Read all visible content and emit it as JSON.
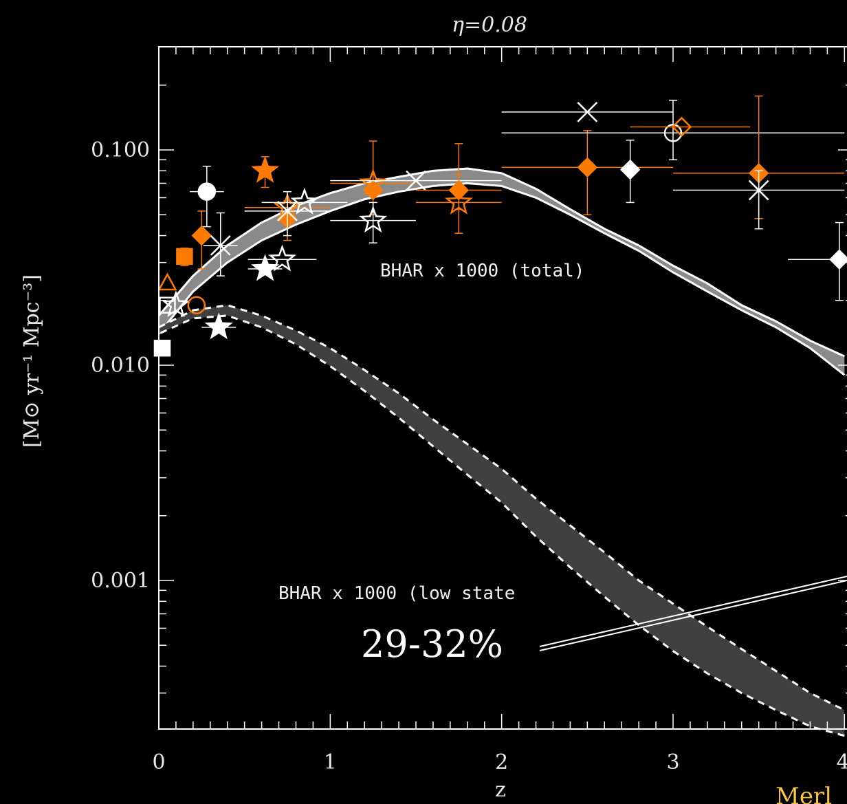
{
  "chart_data": {
    "type": "scatter",
    "title": "η=0.08",
    "xlabel": "z",
    "ylabel": "[M⊙ yr⁻¹ Mpc⁻³]",
    "xlim": [
      0,
      4
    ],
    "ylim": [
      0.0002,
      0.3
    ],
    "yscale": "log",
    "x_ticks": [
      "0",
      "1",
      "2",
      "3",
      "4"
    ],
    "y_ticks": [
      "0.100",
      "0.010",
      "0.001"
    ],
    "y_tick_values": [
      0.1,
      0.01,
      0.001
    ],
    "grid": false,
    "colors": {
      "background": "#000000",
      "foreground": "#ffffff",
      "orange": "#ff7a00",
      "band_total": "#8a8a8a",
      "band_low": "#404040",
      "credit": "#f5c242"
    },
    "annotations": {
      "total_band_label": "BHAR x 1000 (total)",
      "low_band_label": "BHAR x 1000 (low state",
      "fraction_label": "29-32%",
      "credit_text": "Merl"
    },
    "bands": [
      {
        "name": "BHAR x 1000 (total)",
        "x": [
          0,
          0.2,
          0.4,
          0.6,
          0.8,
          1.0,
          1.2,
          1.4,
          1.6,
          1.8,
          2.0,
          2.2,
          2.4,
          2.6,
          2.8,
          3.0,
          3.2,
          3.4,
          3.6,
          3.8,
          4.0
        ],
        "upper": [
          0.017,
          0.026,
          0.036,
          0.046,
          0.055,
          0.063,
          0.07,
          0.075,
          0.08,
          0.082,
          0.078,
          0.066,
          0.053,
          0.043,
          0.036,
          0.029,
          0.024,
          0.019,
          0.016,
          0.013,
          0.011
        ],
        "lower": [
          0.014,
          0.022,
          0.03,
          0.038,
          0.045,
          0.052,
          0.059,
          0.064,
          0.068,
          0.07,
          0.068,
          0.06,
          0.05,
          0.041,
          0.034,
          0.027,
          0.022,
          0.018,
          0.015,
          0.012,
          0.009
        ]
      },
      {
        "name": "BHAR x 1000 (low state)",
        "x": [
          0,
          0.2,
          0.4,
          0.6,
          0.8,
          1.0,
          1.2,
          1.4,
          1.6,
          1.8,
          2.0,
          2.2,
          2.4,
          2.6,
          2.8,
          3.0,
          3.2,
          3.4,
          3.6,
          3.8,
          4.0
        ],
        "upper": [
          0.015,
          0.018,
          0.019,
          0.017,
          0.0145,
          0.012,
          0.0095,
          0.0074,
          0.0056,
          0.0043,
          0.0033,
          0.0024,
          0.0018,
          0.00135,
          0.001,
          0.00078,
          0.00061,
          0.00048,
          0.00038,
          0.0003,
          0.00025
        ],
        "lower": [
          0.014,
          0.0165,
          0.017,
          0.015,
          0.0125,
          0.0099,
          0.0076,
          0.0057,
          0.0042,
          0.0031,
          0.0023,
          0.0016,
          0.00115,
          0.00084,
          0.00062,
          0.00047,
          0.00037,
          0.0003,
          0.00025,
          0.00021,
          0.00019
        ]
      }
    ],
    "points": [
      {
        "x": 0.02,
        "y": 0.012,
        "marker": "square",
        "color": "white",
        "filled": true
      },
      {
        "x": 0.05,
        "y": 0.019,
        "marker": "square",
        "color": "white",
        "filled": false
      },
      {
        "x": 0.05,
        "y": 0.024,
        "marker": "triangle",
        "color": "orange",
        "filled": false
      },
      {
        "x": 0.1,
        "y": 0.019,
        "marker": "star",
        "color": "white",
        "filled": false
      },
      {
        "x": 0.15,
        "y": 0.032,
        "marker": "square",
        "color": "orange",
        "filled": true,
        "yerr": [
          0.003,
          0.003
        ]
      },
      {
        "x": 0.22,
        "y": 0.019,
        "marker": "circle",
        "color": "orange",
        "filled": false
      },
      {
        "x": 0.25,
        "y": 0.04,
        "marker": "diamond",
        "color": "orange",
        "filled": true,
        "yerr": [
          0.012,
          0.012
        ]
      },
      {
        "x": 0.28,
        "y": 0.064,
        "marker": "circle",
        "color": "white",
        "filled": true,
        "yerr": [
          0.02,
          0.02
        ],
        "xerr": [
          0.1,
          0.1
        ]
      },
      {
        "x": 0.35,
        "y": 0.015,
        "marker": "star",
        "color": "white",
        "filled": true,
        "xerr": [
          0.1,
          0.1
        ]
      },
      {
        "x": 0.36,
        "y": 0.036,
        "marker": "x",
        "color": "white",
        "filled": false,
        "yerr": [
          0.01,
          0.015
        ],
        "xerr": [
          0.1,
          0.1
        ]
      },
      {
        "x": 0.62,
        "y": 0.08,
        "marker": "star",
        "color": "orange",
        "filled": true,
        "yerr": [
          0.013,
          0.013
        ]
      },
      {
        "x": 0.62,
        "y": 0.028,
        "marker": "star",
        "color": "white",
        "filled": true,
        "xerr": [
          0.1,
          0.1
        ]
      },
      {
        "x": 0.72,
        "y": 0.031,
        "marker": "star",
        "color": "white",
        "filled": false,
        "xerr": [
          0.2,
          0.2
        ]
      },
      {
        "x": 0.75,
        "y": 0.048,
        "marker": "diamond",
        "color": "orange",
        "filled": true,
        "yerr": [
          0.01,
          0.01
        ]
      },
      {
        "x": 0.75,
        "y": 0.054,
        "marker": "star",
        "color": "orange",
        "filled": false,
        "xerr": [
          0.25,
          0.25
        ]
      },
      {
        "x": 0.75,
        "y": 0.052,
        "marker": "x",
        "color": "white",
        "filled": false,
        "yerr": [
          0.012,
          0.012
        ],
        "xerr": [
          0.25,
          0.25
        ]
      },
      {
        "x": 0.85,
        "y": 0.057,
        "marker": "star",
        "color": "white",
        "filled": false,
        "xerr": [
          0.25,
          0.25
        ]
      },
      {
        "x": 1.25,
        "y": 0.07,
        "marker": "star",
        "color": "orange",
        "filled": false,
        "xerr": [
          0.25,
          0.25
        ],
        "yerr": [
          0.02,
          0.04
        ]
      },
      {
        "x": 1.25,
        "y": 0.065,
        "marker": "diamond",
        "color": "orange",
        "filled": true
      },
      {
        "x": 1.25,
        "y": 0.047,
        "marker": "star",
        "color": "white",
        "filled": false,
        "xerr": [
          0.25,
          0.25
        ],
        "yerr": [
          0.01,
          0.01
        ]
      },
      {
        "x": 1.5,
        "y": 0.072,
        "marker": "x",
        "color": "white",
        "filled": false,
        "xerr": [
          0.5,
          0.5
        ]
      },
      {
        "x": 1.75,
        "y": 0.065,
        "marker": "diamond",
        "color": "orange",
        "filled": true,
        "yerr": [
          0.012,
          0.012
        ],
        "xerr": [
          0.25,
          0.25
        ]
      },
      {
        "x": 1.75,
        "y": 0.057,
        "marker": "star",
        "color": "orange",
        "filled": false,
        "xerr": [
          0.25,
          0.25
        ],
        "yerr": [
          0.016,
          0.05
        ]
      },
      {
        "x": 2.5,
        "y": 0.083,
        "marker": "diamond",
        "color": "orange",
        "filled": true,
        "xerr": [
          0.5,
          0.5
        ],
        "yerr": [
          0.033,
          0.04
        ]
      },
      {
        "x": 2.5,
        "y": 0.15,
        "marker": "x",
        "color": "white",
        "filled": false,
        "xerr": [
          0.5,
          0.5
        ]
      },
      {
        "x": 2.75,
        "y": 0.081,
        "marker": "diamond",
        "color": "white",
        "filled": true,
        "yerr": [
          0.024,
          0.03
        ]
      },
      {
        "x": 3.0,
        "y": 0.12,
        "marker": "circle",
        "color": "white",
        "filled": false,
        "xerr": [
          1.0,
          1.0
        ],
        "yerr": [
          0.03,
          0.05
        ]
      },
      {
        "x": 3.05,
        "y": 0.128,
        "marker": "diamond",
        "color": "orange",
        "filled": false,
        "xerr": [
          0.3,
          0.4
        ]
      },
      {
        "x": 3.5,
        "y": 0.078,
        "marker": "diamond",
        "color": "orange",
        "filled": true,
        "xerr": [
          0.5,
          0.5
        ],
        "yerr": [
          0.03,
          0.1
        ]
      },
      {
        "x": 3.5,
        "y": 0.065,
        "marker": "x",
        "color": "white",
        "filled": false,
        "xerr": [
          0.5,
          0.5
        ],
        "yerr": [
          0.022,
          0.015
        ]
      },
      {
        "x": 3.97,
        "y": 0.031,
        "marker": "diamond",
        "color": "white",
        "filled": true,
        "xerr": [
          0.3,
          0.1
        ],
        "yerr": [
          0.011,
          0.015
        ]
      }
    ]
  }
}
